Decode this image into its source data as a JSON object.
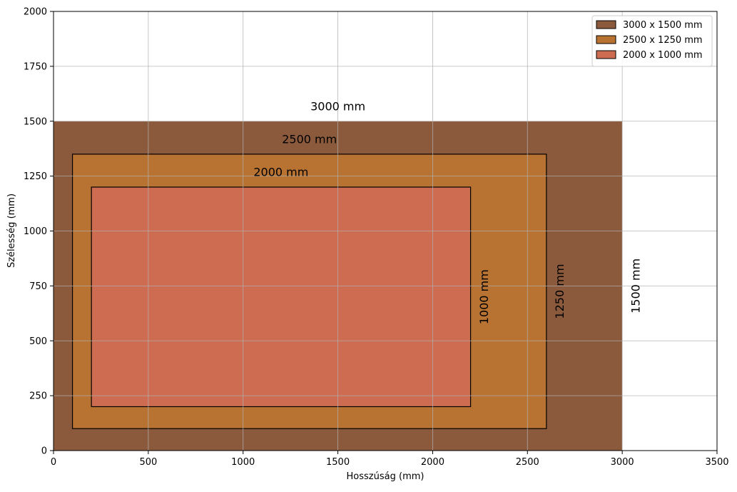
{
  "chart_data": {
    "type": "area",
    "title": "",
    "xlabel": "Hosszúság (mm)",
    "ylabel": "Szélesség (mm)",
    "xlim": [
      0,
      3500
    ],
    "ylim": [
      0,
      2000
    ],
    "xticks": [
      0,
      500,
      1000,
      1500,
      2000,
      2500,
      3000,
      3500
    ],
    "yticks": [
      0,
      250,
      500,
      750,
      1000,
      1250,
      1500,
      1750,
      2000
    ],
    "grid": true,
    "legend_position": "top-right",
    "series": [
      {
        "name": "3000 x 1500 mm",
        "x0": 0,
        "y0": 0,
        "x1": 3000,
        "y1": 1500,
        "color": "#8B5A3C",
        "outline": false,
        "width_label": "3000 mm",
        "width_label_pos": [
          1500,
          1550
        ],
        "height_label": "1500 mm",
        "height_label_pos": [
          3050,
          750
        ]
      },
      {
        "name": "2500 x 1250 mm",
        "x0": 100,
        "y0": 100,
        "x1": 2600,
        "y1": 1350,
        "color": "#B87333",
        "outline": true,
        "width_label": "2500 mm",
        "width_label_pos": [
          1350,
          1400
        ],
        "height_label": "1250 mm",
        "height_label_pos": [
          2650,
          725
        ]
      },
      {
        "name": "2000 x 1000 mm",
        "x0": 200,
        "y0": 200,
        "x1": 2200,
        "y1": 1200,
        "color": "#CD6C51",
        "outline": true,
        "width_label": "2000 mm",
        "width_label_pos": [
          1200,
          1250
        ],
        "height_label": "1000 mm",
        "height_label_pos": [
          2250,
          700
        ]
      }
    ]
  }
}
